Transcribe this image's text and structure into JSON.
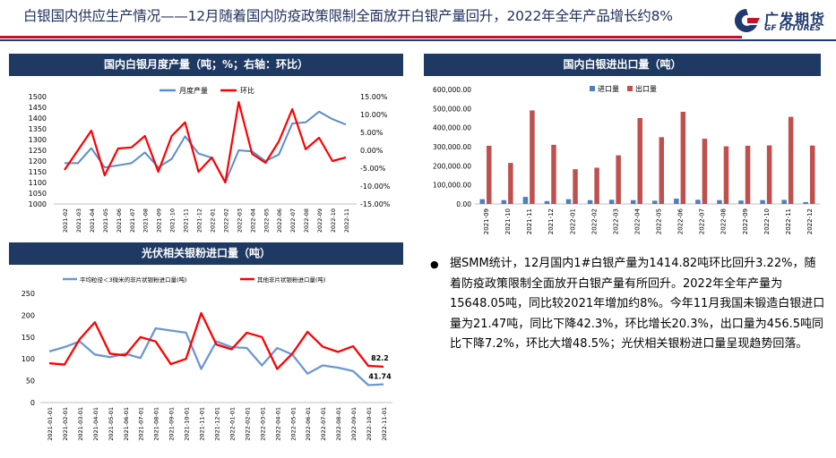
{
  "header": {
    "title": "白银国内供应生产情况——12月随着国内防疫政策限制全面放开白银产量回升，2022年全年产品增长约8%",
    "logo_cn": "广发期货",
    "logo_en": "GF FUTURES",
    "colors": {
      "navy": "#1e3a63",
      "red": "#c8102e"
    }
  },
  "panels": {
    "monthly_title": "国内白银月度产量（吨；%；右轴：环比）",
    "trade_title": "国内白银进出口量（吨）",
    "pv_title": "光伏相关银粉进口量（吨）"
  },
  "commentary": {
    "bullet": "●",
    "text": "据SMM统计，12月国内1#白银产量为1414.82吨环比回升3.22%，随着防疫政策限制全面放开白银产量有所回升。2022年全年产量为15648.05吨，同比较2021年增加约8%。今年11月我国未锻造白银进口量为21.47吨，同比下降42.3%，环比增长20.3%，出口量为456.5吨同比下降7.2%，环比大增48.5%；光伏相关银粉进口量呈现趋势回落。"
  },
  "chart_data": [
    {
      "type": "line",
      "categories": [
        "2021-02",
        "2021-03",
        "2021-04",
        "2021-05",
        "2021-06",
        "2021-07",
        "2021-08",
        "2021-09",
        "2021-10",
        "2021-11",
        "2021-12",
        "2022-01",
        "2022-02",
        "2022-03",
        "2022-04",
        "2022-05",
        "2022-06",
        "2022-07",
        "2022-08",
        "2022-09",
        "2022-10",
        "2022-11"
      ],
      "series": [
        {
          "name": "月度产量",
          "axis": "left",
          "color": "#5b8dc9",
          "values": [
            1190,
            1190,
            1260,
            1170,
            1180,
            1190,
            1240,
            1170,
            1210,
            1315,
            1235,
            1215,
            1100,
            1250,
            1245,
            1200,
            1230,
            1375,
            1380,
            1430,
            1395,
            1370
          ]
        },
        {
          "name": "环比",
          "axis": "right",
          "color": "#ff0000",
          "values": [
            -5.5,
            0.0,
            5.5,
            -7.0,
            0.5,
            0.8,
            4.0,
            -6.0,
            4.0,
            7.8,
            -6.0,
            -2.0,
            -9.0,
            13.5,
            -1.0,
            -3.5,
            2.5,
            11.5,
            0.3,
            3.5,
            -3.0,
            -2.0
          ]
        }
      ],
      "y_left": {
        "min": 1000,
        "max": 1500,
        "step": 50,
        "ticks": [
          "1500",
          "1450",
          "1400",
          "1350",
          "1300",
          "1250",
          "1200",
          "1150",
          "1100",
          "1050",
          "1000"
        ]
      },
      "y_right": {
        "min": -15,
        "max": 15,
        "step": 5,
        "ticks": [
          "15.00%",
          "10.00%",
          "5.00%",
          "0.00%",
          "-5.00%",
          "-10.00%",
          "-15.00%"
        ]
      }
    },
    {
      "type": "bar",
      "categories": [
        "2021-09",
        "2021-10",
        "2021-11",
        "2021-12",
        "2022-01",
        "2022-02",
        "2022-03",
        "2022-04",
        "2022-05",
        "2022-06",
        "2022-07",
        "2022-08",
        "2022-09",
        "2022-10",
        "2022-11",
        "2022-12"
      ],
      "series": [
        {
          "name": "进口量",
          "color": "#4f7fba",
          "values": [
            25000,
            20000,
            37000,
            15000,
            25000,
            20000,
            22000,
            20000,
            17000,
            28000,
            22000,
            20000,
            18000,
            20000,
            21470,
            10000
          ]
        },
        {
          "name": "出口量",
          "color": "#c0504d",
          "values": [
            305000,
            215000,
            490000,
            310000,
            182000,
            190000,
            255000,
            450000,
            350000,
            483000,
            342000,
            302000,
            305000,
            307000,
            456500,
            306000
          ]
        }
      ],
      "y": {
        "min": 0,
        "max": 600000,
        "ticks": [
          "600,000.00",
          "500,000.00",
          "400,000.00",
          "300,000.00",
          "200,000.00",
          "100,000.00",
          "0.00"
        ]
      }
    },
    {
      "type": "line",
      "categories": [
        "2021-01-01",
        "2021-02-01",
        "2021-03-01",
        "2021-04-01",
        "2021-05-01",
        "2021-06-01",
        "2021-07-01",
        "2021-08-01",
        "2021-09-01",
        "2021-10-01",
        "2021-11-01",
        "2021-12-01",
        "2022-01-01",
        "2022-02-01",
        "2022-03-01",
        "2022-04-01",
        "2022-05-01",
        "2022-06-01",
        "2022-07-01",
        "2022-08-01",
        "2022-09-01",
        "2022-10-01",
        "2022-11-01"
      ],
      "series": [
        {
          "name": "平均粒径＜3微米的非片状银粉进口量(吨)",
          "color": "#6a98cf",
          "values": [
            117,
            127,
            140,
            110,
            104,
            112,
            102,
            170,
            165,
            160,
            77,
            140,
            127,
            125,
            85,
            125,
            110,
            66,
            85,
            80,
            72,
            40,
            41.74
          ]
        },
        {
          "name": "其他非片状银粉进口量(吨)",
          "color": "#ff0000",
          "values": [
            90,
            87,
            145,
            184,
            112,
            108,
            150,
            140,
            88,
            100,
            205,
            133,
            122,
            160,
            150,
            77,
            112,
            162,
            128,
            116,
            129,
            84,
            82.2
          ]
        }
      ],
      "y": {
        "min": 0,
        "max": 250,
        "ticks": [
          "250",
          "200",
          "150",
          "100",
          "50",
          "0"
        ]
      },
      "data_labels": {
        "red_last": "82.2",
        "blue_last": "41.74"
      }
    }
  ]
}
